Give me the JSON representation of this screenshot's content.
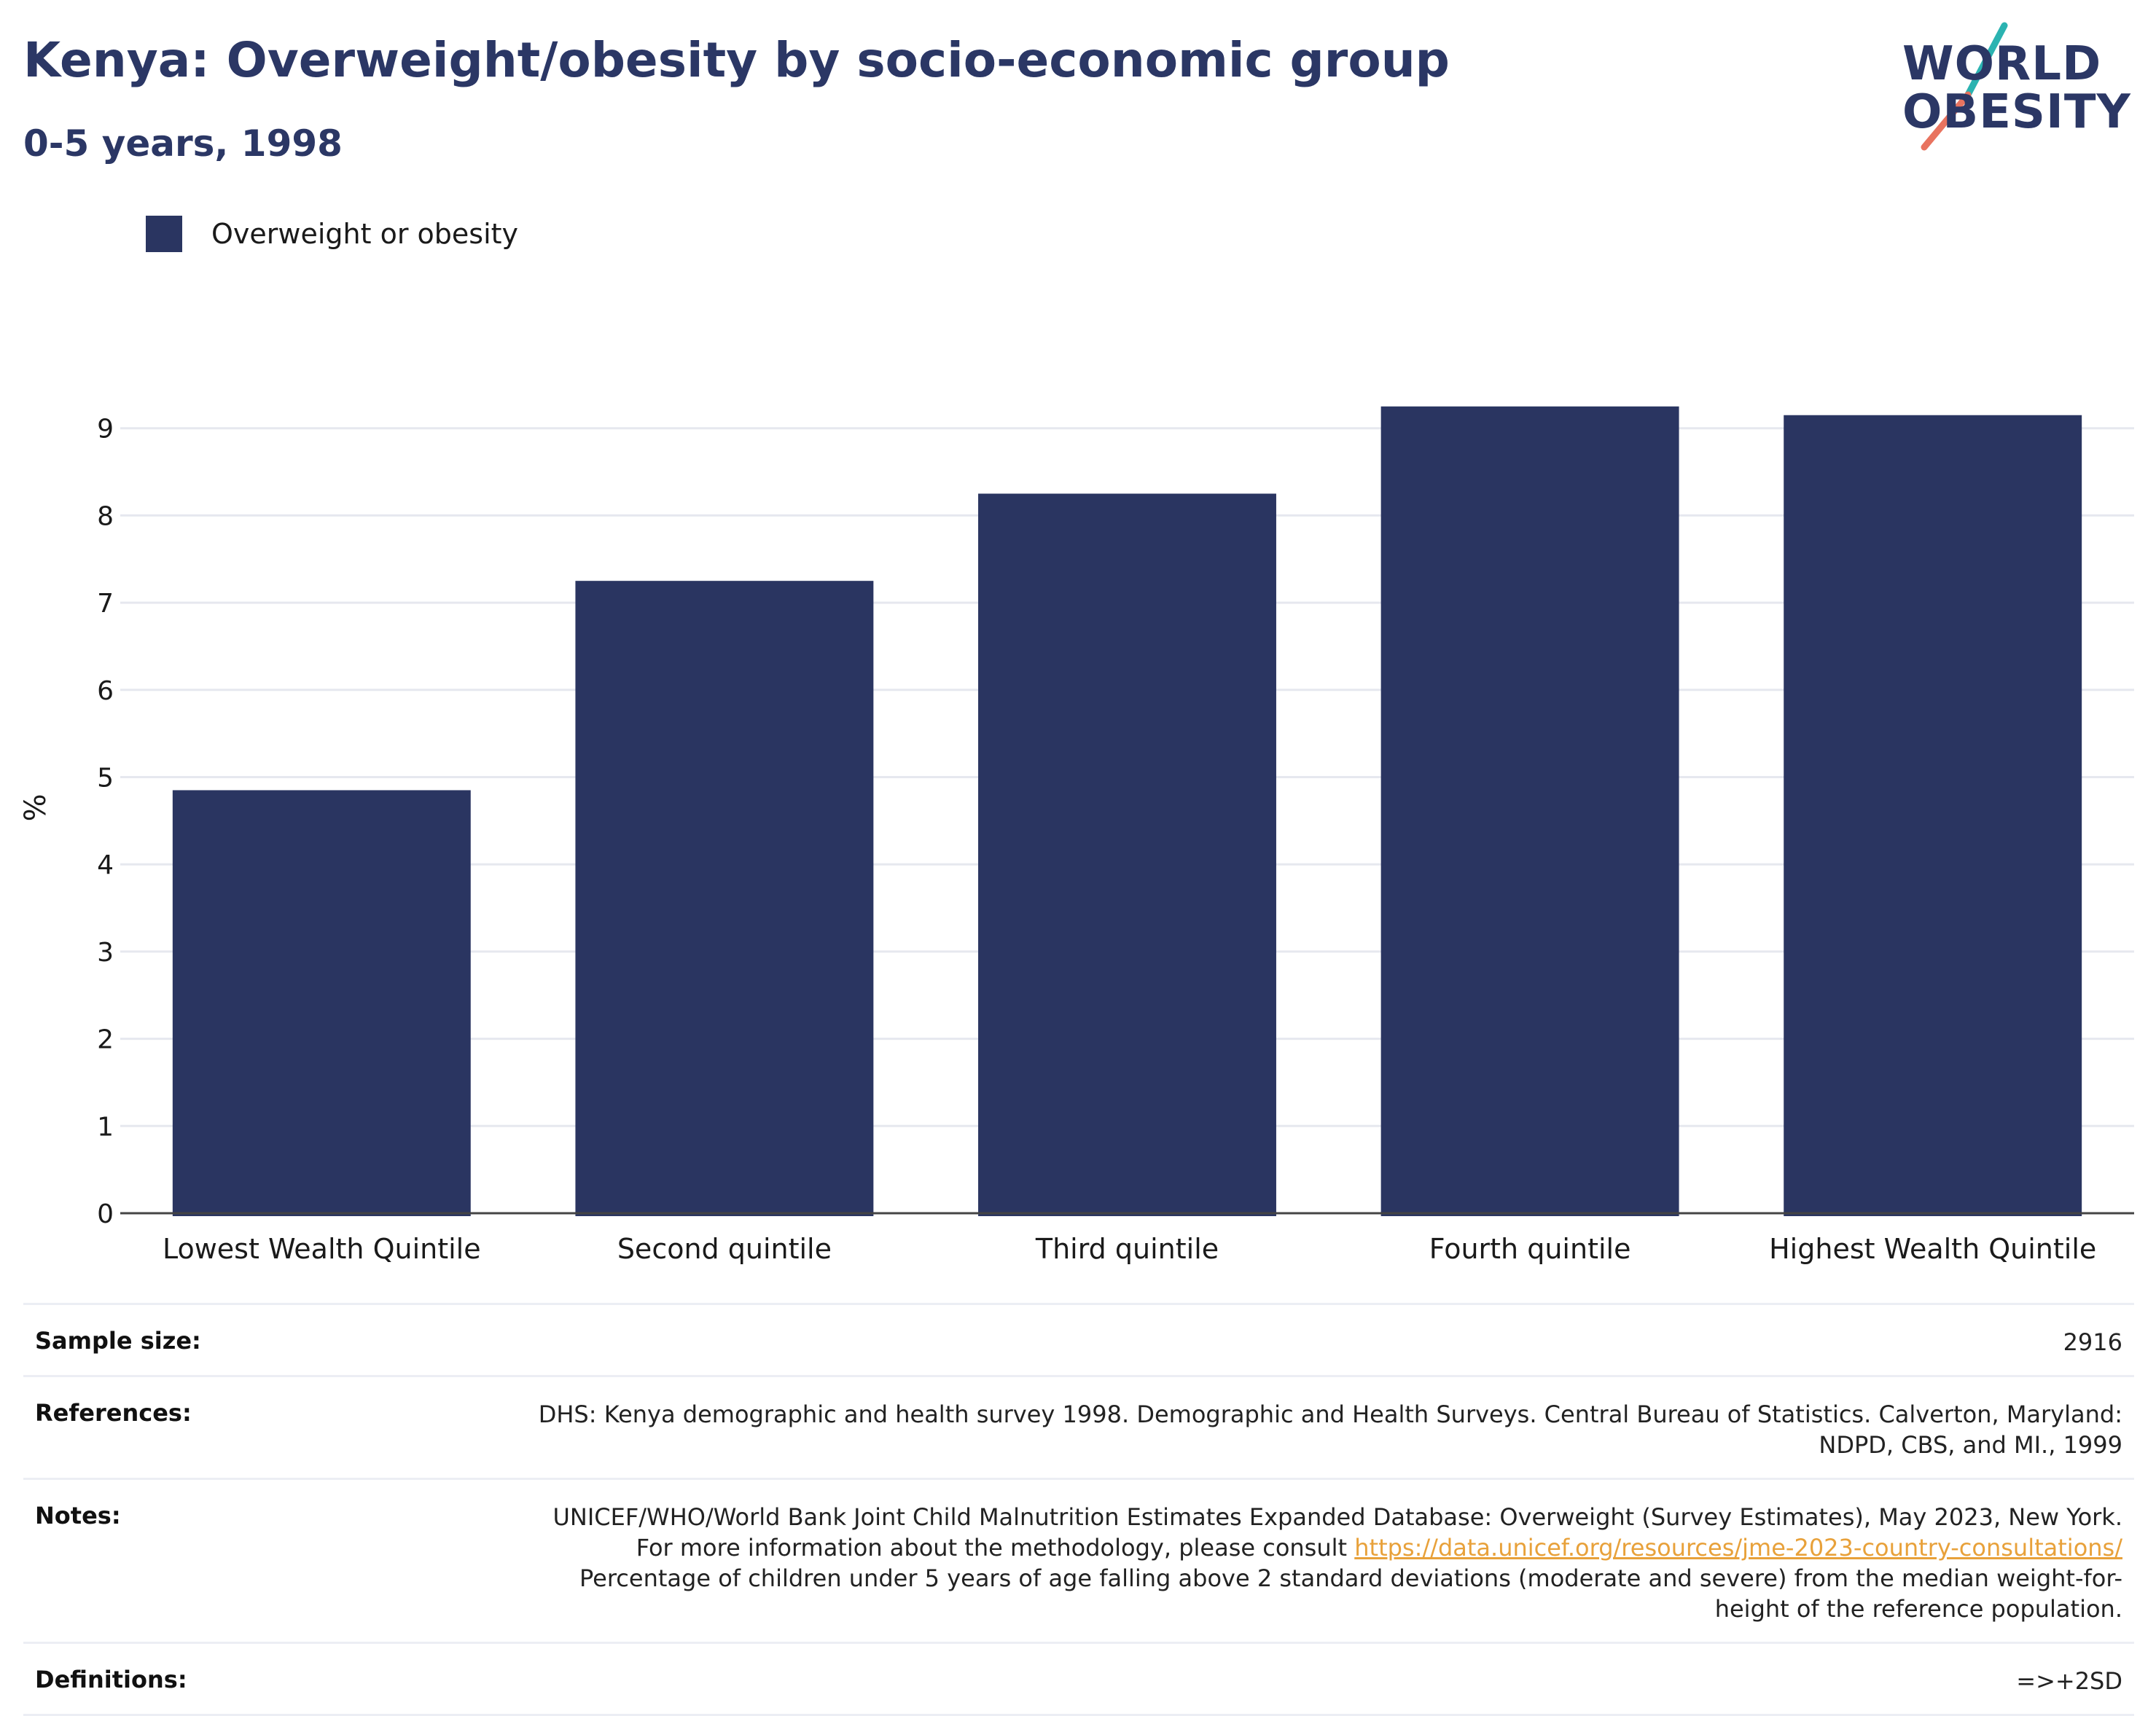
{
  "header": {
    "title": "Kenya: Overweight/obesity by socio-economic group",
    "subtitle": "0-5 years, 1998"
  },
  "logo": {
    "line1": "WORLD",
    "line2": "OBESITY",
    "colors": {
      "teal": "#2bb3b1",
      "coral": "#e8735f",
      "navy": "#2b3765"
    }
  },
  "legend": {
    "label": "Overweight or obesity",
    "color": "#2a3561"
  },
  "chart_data": {
    "type": "bar",
    "categories": [
      "Lowest Wealth Quintile",
      "Second quintile",
      "Third quintile",
      "Fourth quintile",
      "Highest Wealth Quintile"
    ],
    "series": [
      {
        "name": "Overweight or obesity",
        "values": [
          4.85,
          7.25,
          8.25,
          9.25,
          9.15
        ],
        "color": "#2a3561"
      }
    ],
    "xlabel": "",
    "ylabel": "%",
    "ylim": [
      0,
      9.5
    ],
    "yticks": [
      0,
      1,
      2,
      3,
      4,
      5,
      6,
      7,
      8,
      9
    ],
    "grid": true,
    "legend_position": "top-left"
  },
  "info": {
    "sample_size": {
      "label": "Sample size:",
      "value": "2916"
    },
    "references": {
      "label": "References:",
      "value": "DHS: Kenya demographic and health survey 1998. Demographic and Health Surveys. Central Bureau of Statistics. Calverton, Maryland: NDPD, CBS, and MI., 1999"
    },
    "notes": {
      "label": "Notes:",
      "text_before": "UNICEF/WHO/World Bank Joint Child Malnutrition Estimates Expanded Database: Overweight (Survey Estimates), May 2023, New York. For more information about the methodology, please consult ",
      "link": "https://data.unicef.org/resources/jme-2023-country-consultations/",
      "text_after": " Percentage of children under 5 years of age falling above 2 standard deviations (moderate and severe) from the median weight-for-height of the reference population."
    },
    "definitions": {
      "label": "Definitions:",
      "value": "=>+2SD"
    }
  }
}
